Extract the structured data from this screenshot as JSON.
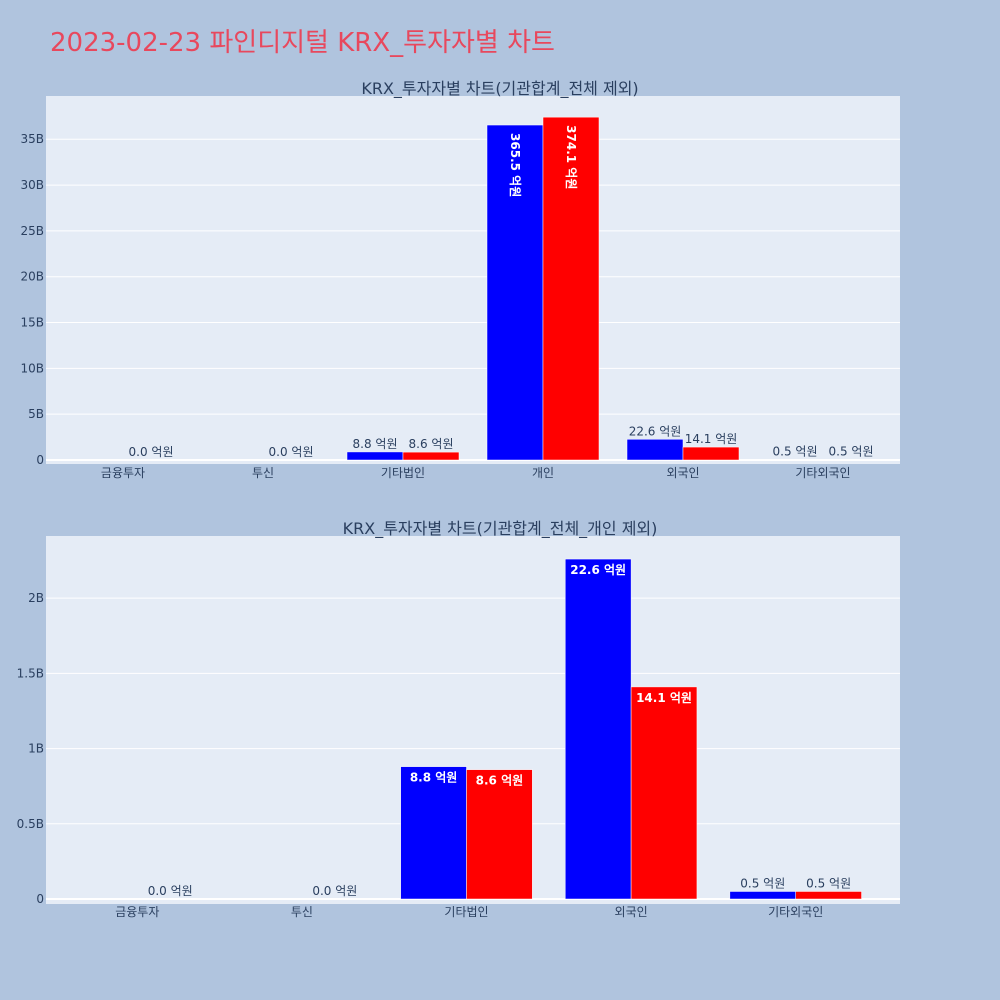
{
  "page_title": "2023-02-23 파인디지털 KRX_투자자별 차트",
  "colors": {
    "series_a": "#0000ff",
    "series_b": "#ff0000",
    "plot_bg": "#e5ecf6",
    "page_bg": "#b0c4de",
    "title": "#e8485d"
  },
  "chart_data": [
    {
      "type": "bar",
      "title": "KRX_투자자별 차트(기관합계_전체 제외)",
      "categories": [
        "금융투자",
        "투신",
        "기타법인",
        "개인",
        "외국인",
        "기타외국인"
      ],
      "series": [
        {
          "values": [
            0,
            0,
            0.88,
            36.55,
            2.26,
            0.05
          ],
          "labels": [
            "",
            "",
            "8.8 억원",
            "365.5 억원",
            "22.6 억원",
            "0.5 억원"
          ]
        },
        {
          "values": [
            0,
            0,
            0.86,
            37.41,
            1.41,
            0.05
          ],
          "labels": [
            "0.0 억원",
            "0.0 억원",
            "8.6 억원",
            "374.1 억원",
            "14.1 억원",
            "0.5 억원"
          ]
        }
      ],
      "ylim": [
        0,
        39.5
      ],
      "yticks": [
        0,
        5,
        10,
        15,
        20,
        25,
        30,
        35
      ],
      "ytick_labels": [
        "0",
        "5B",
        "10B",
        "15B",
        "20B",
        "25B",
        "30B",
        "35B"
      ],
      "grid": true
    },
    {
      "type": "bar",
      "title": "KRX_투자자별 차트(기관합계_전체_개인 제외)",
      "categories": [
        "금융투자",
        "투신",
        "기타법인",
        "외국인",
        "기타외국인"
      ],
      "series": [
        {
          "values": [
            0,
            0,
            0.88,
            2.26,
            0.05
          ],
          "labels": [
            "",
            "",
            "8.8 억원",
            "22.6 억원",
            "0.5 억원"
          ]
        },
        {
          "values": [
            0,
            0,
            0.86,
            1.41,
            0.05
          ],
          "labels": [
            "0.0 억원",
            "0.0 억원",
            "8.6 억원",
            "14.1 억원",
            "0.5 억원"
          ]
        }
      ],
      "ylim": [
        0,
        2.4
      ],
      "yticks": [
        0,
        0.5,
        1,
        1.5,
        2
      ],
      "ytick_labels": [
        "0",
        "0.5B",
        "1B",
        "1.5B",
        "2B"
      ],
      "grid": true
    }
  ]
}
